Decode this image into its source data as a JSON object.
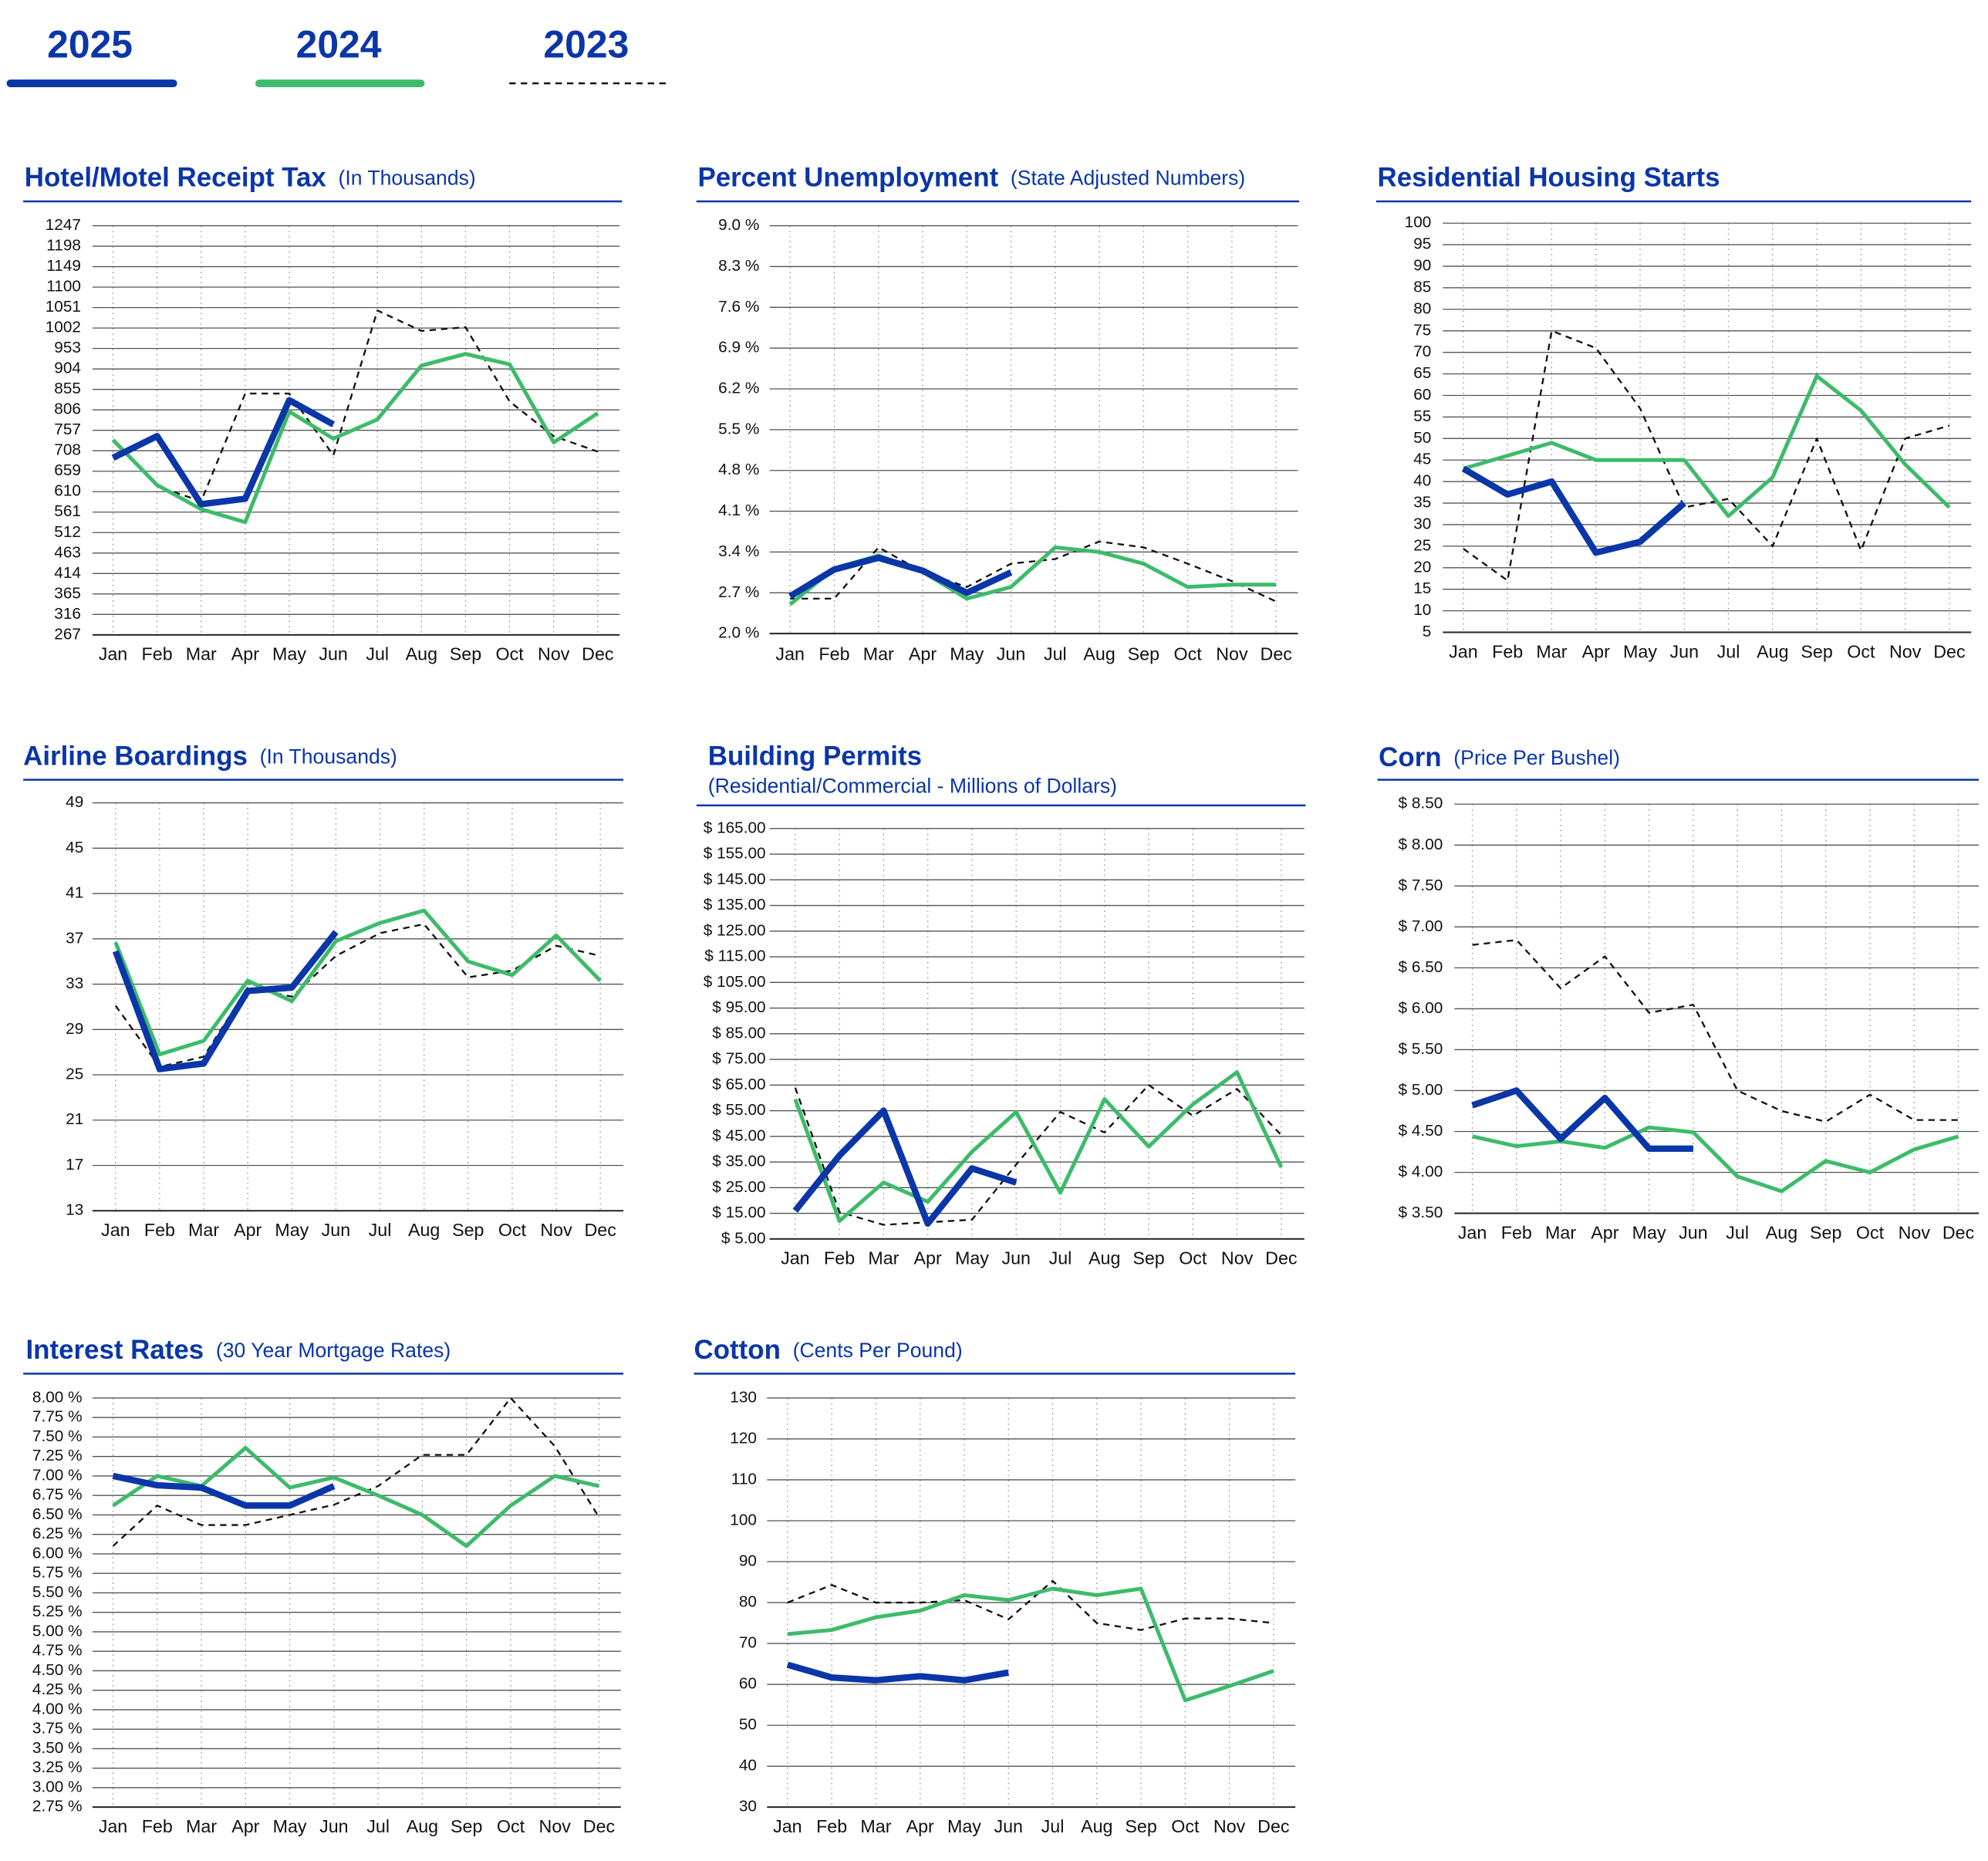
{
  "legend": [
    {
      "name": "2025",
      "color": "#0a36a8",
      "style": "solid"
    },
    {
      "name": "2024",
      "color": "#3dbb6a",
      "style": "solid"
    },
    {
      "name": "2023",
      "color": "#111111",
      "style": "dashed"
    }
  ],
  "chart_data": [
    {
      "type": "line",
      "title": "Hotel/Motel Receipt Tax",
      "subtitle": "(In Thousands)",
      "categories": [
        "Jan",
        "Feb",
        "Mar",
        "Apr",
        "May",
        "Jun",
        "Jul",
        "Aug",
        "Sep",
        "Oct",
        "Nov",
        "Dec"
      ],
      "ylim": [
        267,
        1247
      ],
      "yticks": [
        267,
        316,
        365,
        414,
        463,
        512,
        561,
        610,
        659,
        708,
        757,
        806,
        855,
        904,
        953,
        1002,
        1051,
        1100,
        1149,
        1198,
        1247
      ],
      "grid": true,
      "series": [
        {
          "values": [
            691,
            743,
            580,
            593,
            829,
            771,
            null,
            null,
            null,
            null,
            null,
            null
          ]
        },
        {
          "values": [
            734,
            626,
            568,
            537,
            802,
            737,
            783,
            912,
            940,
            915,
            728,
            798
          ]
        },
        {
          "values": [
            731,
            623,
            587,
            845,
            845,
            697,
            1044,
            995,
            1004,
            826,
            743,
            706
          ]
        }
      ]
    },
    {
      "type": "line",
      "title": "Percent Unemployment",
      "subtitle": "(State Adjusted Numbers)",
      "categories": [
        "Jan",
        "Feb",
        "Mar",
        "Apr",
        "May",
        "Jun",
        "Jul",
        "Aug",
        "Sep",
        "Oct",
        "Nov",
        "Dec"
      ],
      "ylim": [
        2,
        9
      ],
      "yticks": [
        {
          "value": 2,
          "label": "2.0 %"
        },
        {
          "value": 2.7,
          "label": "2.7 %"
        },
        {
          "value": 3.4,
          "label": "3.4 %"
        },
        {
          "value": 4.1,
          "label": "4.1 %"
        },
        {
          "value": 4.8,
          "label": "4.8 %"
        },
        {
          "value": 5.5,
          "label": "5.5 %"
        },
        {
          "value": 6.2,
          "label": "6.2 %"
        },
        {
          "value": 6.9,
          "label": "6.9 %"
        },
        {
          "value": 7.6,
          "label": "7.6 %"
        },
        {
          "value": 8.3,
          "label": "8.3 %"
        },
        {
          "value": 9,
          "label": "9.0 %"
        }
      ],
      "grid": true,
      "series": [
        {
          "values": [
            2.64,
            3.1,
            3.3,
            3.08,
            2.7,
            3.05,
            null,
            null,
            null,
            null,
            null,
            null
          ]
        },
        {
          "values": [
            2.5,
            3.12,
            3.34,
            3.06,
            2.6,
            2.8,
            3.48,
            3.4,
            3.2,
            2.8,
            2.84,
            2.84
          ]
        },
        {
          "values": [
            2.6,
            2.6,
            3.48,
            3.06,
            2.8,
            3.2,
            3.28,
            3.58,
            3.48,
            3.2,
            2.9,
            2.55
          ]
        }
      ]
    },
    {
      "type": "line",
      "title": "Residential Housing Starts",
      "categories": [
        "Jan",
        "Feb",
        "Mar",
        "Apr",
        "May",
        "Jun",
        "Jul",
        "Aug",
        "Sep",
        "Oct",
        "Nov",
        "Dec"
      ],
      "ylim": [
        5,
        100
      ],
      "yticks": [
        5,
        10,
        15,
        20,
        25,
        30,
        35,
        40,
        45,
        50,
        55,
        60,
        65,
        70,
        75,
        80,
        85,
        90,
        95,
        100
      ],
      "grid": true,
      "series": [
        {
          "values": [
            43,
            37,
            40,
            23.5,
            26,
            35,
            null,
            null,
            null,
            null,
            null,
            null
          ]
        },
        {
          "values": [
            43,
            46,
            49,
            45,
            45,
            45,
            32,
            41,
            64.5,
            56.5,
            44,
            34
          ]
        },
        {
          "values": [
            24.4,
            17,
            75,
            71,
            57,
            34,
            36,
            25,
            50,
            24,
            50,
            53
          ]
        }
      ]
    },
    {
      "type": "line",
      "title": "Airline Boardings",
      "subtitle": "(In Thousands)",
      "categories": [
        "Jan",
        "Feb",
        "Mar",
        "Apr",
        "May",
        "Jun",
        "Jul",
        "Aug",
        "Sep",
        "Oct",
        "Nov",
        "Dec"
      ],
      "ylim": [
        13,
        49
      ],
      "yticks": [
        13,
        17,
        21,
        25,
        29,
        33,
        37,
        41,
        45,
        49
      ],
      "grid": true,
      "series": [
        {
          "values": [
            35.9,
            25.5,
            26,
            32.4,
            32.7,
            37.6,
            null,
            null,
            null,
            null,
            null,
            null
          ]
        },
        {
          "values": [
            36.7,
            26.8,
            28,
            33.3,
            31.5,
            36.8,
            38.4,
            39.5,
            35,
            33.8,
            37.3,
            33.3
          ]
        },
        {
          "values": [
            31.1,
            25.7,
            26.6,
            32.7,
            31.9,
            35.5,
            37.5,
            38.3,
            33.6,
            34.2,
            36.4,
            35.5
          ]
        }
      ]
    },
    {
      "type": "line",
      "title": "Building Permits",
      "subtitle": "(Residential/Commercial - Millions of Dollars)",
      "categories": [
        "Jan",
        "Feb",
        "Mar",
        "Apr",
        "May",
        "Jun",
        "Jul",
        "Aug",
        "Sep",
        "Oct",
        "Nov",
        "Dec"
      ],
      "ylim": [
        5,
        165
      ],
      "yticks": [
        {
          "value": 5,
          "label": "$ 5.00"
        },
        {
          "value": 15,
          "label": "$ 15.00"
        },
        {
          "value": 25,
          "label": "$ 25.00"
        },
        {
          "value": 35,
          "label": "$ 35.00"
        },
        {
          "value": 45,
          "label": "$ 45.00"
        },
        {
          "value": 55,
          "label": "$ 55.00"
        },
        {
          "value": 65,
          "label": "$ 65.00"
        },
        {
          "value": 75,
          "label": "$ 75.00"
        },
        {
          "value": 85,
          "label": "$ 85.00"
        },
        {
          "value": 95,
          "label": "$ 95.00"
        },
        {
          "value": 105,
          "label": "$ 105.00"
        },
        {
          "value": 115,
          "label": "$ 115.00"
        },
        {
          "value": 125,
          "label": "$ 125.00"
        },
        {
          "value": 135,
          "label": "$ 135.00"
        },
        {
          "value": 145,
          "label": "$ 145.00"
        },
        {
          "value": 155,
          "label": "$ 155.00"
        },
        {
          "value": 165,
          "label": "$ 165.00"
        }
      ],
      "grid": true,
      "series": [
        {
          "values": [
            16,
            37.5,
            55,
            11,
            32.5,
            27,
            null,
            null,
            null,
            null,
            null,
            null
          ]
        },
        {
          "values": [
            59.5,
            12,
            27,
            19.5,
            39,
            54.5,
            23,
            59.5,
            41,
            57.5,
            70,
            33
          ]
        },
        {
          "values": [
            64,
            15.5,
            10.5,
            11.5,
            12.5,
            34,
            54.5,
            46.5,
            65,
            53,
            63.5,
            45.5
          ]
        }
      ]
    },
    {
      "type": "line",
      "title": "Corn",
      "subtitle": "(Price Per Bushel)",
      "categories": [
        "Jan",
        "Feb",
        "Mar",
        "Apr",
        "May",
        "Jun",
        "Jul",
        "Aug",
        "Sep",
        "Oct",
        "Nov",
        "Dec"
      ],
      "ylim": [
        3.5,
        8.5
      ],
      "yticks": [
        {
          "value": 3.5,
          "label": "$ 3.50"
        },
        {
          "value": 4,
          "label": "$ 4.00"
        },
        {
          "value": 4.5,
          "label": "$ 4.50"
        },
        {
          "value": 5,
          "label": "$ 5.00"
        },
        {
          "value": 5.5,
          "label": "$ 5.50"
        },
        {
          "value": 6,
          "label": "$ 6.00"
        },
        {
          "value": 6.5,
          "label": "$ 6.50"
        },
        {
          "value": 7,
          "label": "$ 7.00"
        },
        {
          "value": 7.5,
          "label": "$ 7.50"
        },
        {
          "value": 8,
          "label": "$ 8.00"
        },
        {
          "value": 8.5,
          "label": "$ 8.50"
        }
      ],
      "grid": true,
      "series": [
        {
          "values": [
            4.82,
            5,
            4.41,
            4.91,
            4.29,
            4.29,
            null,
            null,
            null,
            null,
            null,
            null
          ]
        },
        {
          "values": [
            4.44,
            4.32,
            4.38,
            4.3,
            4.55,
            4.49,
            3.95,
            3.77,
            4.14,
            4,
            4.28,
            4.44
          ]
        },
        {
          "values": [
            6.78,
            6.84,
            6.25,
            6.64,
            5.95,
            6.05,
            5,
            4.75,
            4.62,
            4.95,
            4.64,
            4.64
          ]
        }
      ]
    },
    {
      "type": "line",
      "title": "Interest Rates",
      "subtitle": "(30 Year Mortgage Rates)",
      "categories": [
        "Jan",
        "Feb",
        "Mar",
        "Apr",
        "May",
        "Jun",
        "Jul",
        "Aug",
        "Sep",
        "Oct",
        "Nov",
        "Dec"
      ],
      "ylim": [
        2.75,
        8
      ],
      "yticks": [
        {
          "value": 2.75,
          "label": "2.75 %"
        },
        {
          "value": 3,
          "label": "3.00 %"
        },
        {
          "value": 3.25,
          "label": "3.25 %"
        },
        {
          "value": 3.5,
          "label": "3.50 %"
        },
        {
          "value": 3.75,
          "label": "3.75 %"
        },
        {
          "value": 4,
          "label": "4.00 %"
        },
        {
          "value": 4.25,
          "label": "4.25 %"
        },
        {
          "value": 4.5,
          "label": "4.50 %"
        },
        {
          "value": 4.75,
          "label": "4.75 %"
        },
        {
          "value": 5,
          "label": "5.00 %"
        },
        {
          "value": 5.25,
          "label": "5.25 %"
        },
        {
          "value": 5.5,
          "label": "5.50 %"
        },
        {
          "value": 5.75,
          "label": "5.75 %"
        },
        {
          "value": 6,
          "label": "6.00 %"
        },
        {
          "value": 6.25,
          "label": "6.25 %"
        },
        {
          "value": 6.5,
          "label": "6.50 %"
        },
        {
          "value": 6.75,
          "label": "6.75 %"
        },
        {
          "value": 7,
          "label": "7.00 %"
        },
        {
          "value": 7.25,
          "label": "7.25 %"
        },
        {
          "value": 7.5,
          "label": "7.50 %"
        },
        {
          "value": 7.75,
          "label": "7.75 %"
        },
        {
          "value": 8,
          "label": "8.00 %"
        }
      ],
      "grid": true,
      "series": [
        {
          "values": [
            7,
            6.88,
            6.85,
            6.62,
            6.62,
            6.87,
            null,
            null,
            null,
            null,
            null,
            null
          ]
        },
        {
          "values": [
            6.62,
            7,
            6.87,
            7.36,
            6.85,
            6.98,
            6.75,
            6.5,
            6.1,
            6.62,
            7,
            6.87
          ]
        },
        {
          "values": [
            6.1,
            6.62,
            6.37,
            6.37,
            6.5,
            6.63,
            6.87,
            7.27,
            7.27,
            8,
            7.38,
            6.47
          ]
        }
      ]
    },
    {
      "type": "line",
      "title": "Cotton",
      "subtitle": "(Cents Per Pound)",
      "categories": [
        "Jan",
        "Feb",
        "Mar",
        "Apr",
        "May",
        "Jun",
        "Jul",
        "Aug",
        "Sep",
        "Oct",
        "Nov",
        "Dec"
      ],
      "ylim": [
        30,
        130
      ],
      "yticks": [
        30,
        40,
        50,
        60,
        70,
        80,
        90,
        100,
        110,
        120,
        130
      ],
      "grid": true,
      "series": [
        {
          "values": [
            64.8,
            61.7,
            61,
            62,
            61,
            62.9,
            null,
            null,
            null,
            null,
            null,
            null
          ]
        },
        {
          "values": [
            72.3,
            73.3,
            76.4,
            78,
            81.8,
            80.6,
            83.4,
            81.8,
            83.4,
            56.1,
            59.6,
            63.3
          ]
        },
        {
          "values": [
            80,
            84.3,
            80,
            80,
            80.6,
            75.9,
            85.3,
            75,
            73.3,
            76.1,
            76.1,
            75
          ]
        }
      ]
    }
  ]
}
